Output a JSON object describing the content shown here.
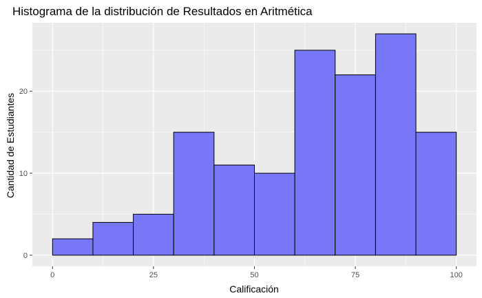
{
  "chart_data": {
    "type": "histogram",
    "title": "Histograma de la distribución de Resultados en Aritmética",
    "xlabel": "Calificación",
    "ylabel": "Cantidad de Estudiantes",
    "xlim": [
      -5,
      105
    ],
    "ylim": [
      -1.35,
      28.35
    ],
    "bin_width": 10,
    "bins": [
      {
        "start": 0,
        "end": 10,
        "count": 2
      },
      {
        "start": 10,
        "end": 20,
        "count": 4
      },
      {
        "start": 20,
        "end": 30,
        "count": 5
      },
      {
        "start": 30,
        "end": 40,
        "count": 15
      },
      {
        "start": 40,
        "end": 50,
        "count": 11
      },
      {
        "start": 50,
        "end": 60,
        "count": 10
      },
      {
        "start": 60,
        "end": 70,
        "count": 25
      },
      {
        "start": 70,
        "end": 80,
        "count": 22
      },
      {
        "start": 80,
        "end": 90,
        "count": 27
      },
      {
        "start": 90,
        "end": 100,
        "count": 15
      }
    ],
    "x_ticks": [
      0,
      25,
      50,
      75,
      100
    ],
    "y_ticks": [
      0,
      10,
      20
    ],
    "x_tick_labels": [
      "0",
      "25",
      "50",
      "75",
      "100"
    ],
    "y_tick_labels": [
      "0",
      "10",
      "20"
    ],
    "grid": true,
    "legend": "none",
    "colors": {
      "bar_fill": "#7777f7",
      "bar_stroke": "#000000",
      "panel_background": "#ebebeb",
      "grid": "#ffffff",
      "text": "#000000",
      "tick_text": "#4d4d4d",
      "tick_mark": "#333333"
    }
  }
}
